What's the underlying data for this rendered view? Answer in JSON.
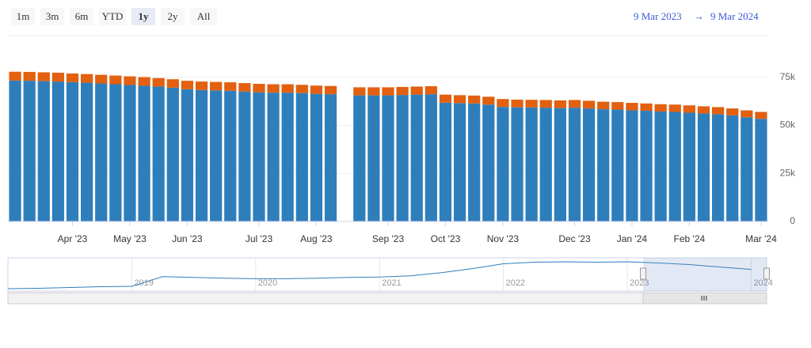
{
  "range_selector": {
    "buttons": [
      "1m",
      "3m",
      "6m",
      "YTD",
      "1y",
      "2y",
      "All"
    ],
    "selected": 4,
    "from": "9 Mar 2023",
    "arrow": "→",
    "to": "9 Mar 2024"
  },
  "chart_data": [
    {
      "type": "bar",
      "stacked": true,
      "grid": true,
      "categories": [
        null,
        null,
        null,
        null,
        "Apr '23",
        null,
        null,
        null,
        "May '23",
        null,
        null,
        null,
        "Jun '23",
        null,
        null,
        null,
        null,
        "Jul '23",
        null,
        null,
        null,
        "Aug '23",
        null,
        null,
        null,
        null,
        "Sep '23",
        null,
        null,
        null,
        "Oct '23",
        null,
        null,
        null,
        "Nov '23",
        null,
        null,
        null,
        null,
        "Dec '23",
        null,
        null,
        null,
        "Jan '24",
        null,
        null,
        null,
        "Feb '24",
        null,
        null,
        null,
        null,
        "Mar '24"
      ],
      "series": [
        {
          "color": "#2f7ebc",
          "values": [
            73300,
            73200,
            73000,
            72800,
            72500,
            72200,
            71800,
            71400,
            71000,
            70600,
            70200,
            69600,
            68800,
            68400,
            68200,
            68000,
            67600,
            67200,
            67000,
            67000,
            66800,
            66400,
            66200,
            null,
            65600,
            65600,
            65600,
            65800,
            66000,
            66200,
            61800,
            61600,
            61400,
            60800,
            59600,
            59400,
            59300,
            59200,
            59000,
            59200,
            58800,
            58400,
            58200,
            57800,
            57600,
            57200,
            57000,
            56600,
            56200,
            55800,
            55200,
            54200,
            53400
          ]
        },
        {
          "color": "#e2600f",
          "values": [
            4600,
            4600,
            4600,
            4600,
            4500,
            4500,
            4500,
            4500,
            4500,
            4500,
            4400,
            4400,
            4400,
            4400,
            4400,
            4400,
            4400,
            4400,
            4400,
            4400,
            4300,
            4300,
            4300,
            null,
            4200,
            4200,
            4200,
            4200,
            4200,
            4200,
            4200,
            4100,
            4100,
            4100,
            4100,
            4000,
            4000,
            4000,
            4000,
            4000,
            4000,
            3900,
            3900,
            3900,
            3800,
            3800,
            3800,
            3800,
            3700,
            3700,
            3600,
            3600,
            3600
          ]
        }
      ],
      "ylim": [
        0,
        100000
      ],
      "yticks": [
        0,
        {
          "value": 25000,
          "label": "25k"
        },
        {
          "value": 50000,
          "label": "50k"
        },
        {
          "value": 75000,
          "label": "75k"
        }
      ]
    },
    {
      "type": "line",
      "categories": [
        null,
        null,
        null,
        null,
        "2019",
        null,
        null,
        null,
        "2020",
        null,
        null,
        null,
        "2021",
        null,
        null,
        null,
        "2022",
        null,
        null,
        null,
        "2023",
        null,
        null,
        null,
        "2024"
      ],
      "color": "#2f7ebc",
      "values": [
        10000,
        11000,
        13000,
        15000,
        16000,
        40000,
        38000,
        36000,
        35000,
        35000,
        36000,
        38000,
        39000,
        42000,
        50000,
        60000,
        72000,
        76000,
        77000,
        76000,
        77000,
        74000,
        70000,
        64000,
        58000
      ]
    }
  ]
}
